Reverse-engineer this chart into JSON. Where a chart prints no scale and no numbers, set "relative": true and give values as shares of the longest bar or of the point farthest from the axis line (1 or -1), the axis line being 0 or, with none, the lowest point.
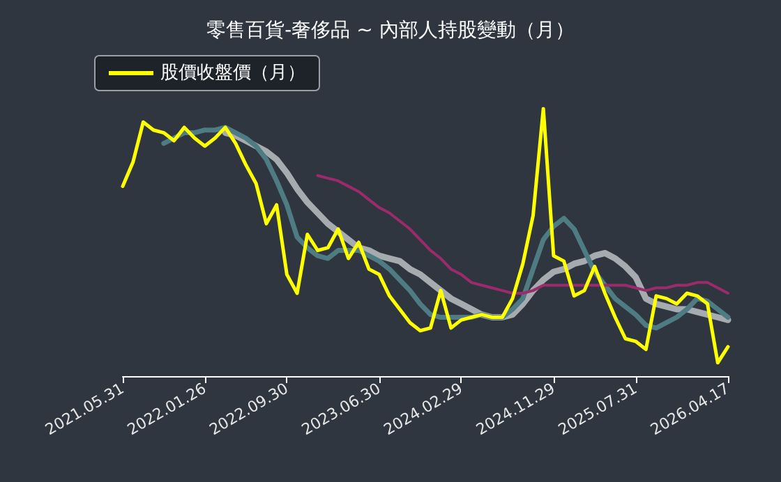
{
  "chart_data": {
    "type": "line",
    "title": "零售百貨-奢侈品 ~ 內部人持股變動（月）",
    "relative": true,
    "legend": "top left",
    "grid": false,
    "marker": "none",
    "line_style": "solid",
    "categories": [
      "2021.05.31",
      null,
      null,
      null,
      null,
      null,
      null,
      null,
      "2022.01.26",
      null,
      null,
      null,
      null,
      null,
      null,
      null,
      "2022.09.30",
      null,
      null,
      null,
      null,
      null,
      null,
      null,
      null,
      "2023.06.30",
      null,
      null,
      null,
      null,
      null,
      null,
      null,
      "2024.02.29",
      null,
      null,
      null,
      null,
      null,
      null,
      null,
      null,
      "2024.11.29",
      null,
      null,
      null,
      null,
      null,
      null,
      null,
      "2025.07.31",
      null,
      null,
      null,
      null,
      null,
      null,
      null,
      null,
      "2026.04.17"
    ],
    "series": [
      {
        "color": "#a6abb0",
        "values": [
          null,
          null,
          null,
          null,
          null,
          null,
          null,
          null,
          null,
          null,
          0.91,
          0.9,
          0.88,
          0.86,
          0.84,
          0.81,
          0.76,
          0.7,
          0.65,
          0.61,
          0.57,
          0.54,
          0.51,
          0.48,
          0.47,
          0.45,
          0.44,
          0.43,
          0.4,
          0.38,
          0.35,
          0.32,
          0.29,
          0.27,
          0.25,
          0.23,
          0.22,
          0.22,
          0.23,
          0.27,
          0.32,
          0.36,
          0.39,
          0.4,
          0.42,
          0.43,
          0.45,
          0.46,
          0.44,
          0.41,
          0.37,
          0.29,
          0.27,
          0.26,
          0.25,
          0.25,
          0.24,
          0.23,
          0.22,
          0.21
        ]
      },
      {
        "color": "#4e7c82",
        "values": [
          null,
          null,
          null,
          null,
          0.87,
          0.89,
          0.91,
          0.91,
          0.92,
          0.92,
          0.93,
          0.91,
          0.89,
          0.86,
          0.81,
          0.73,
          0.64,
          0.52,
          0.48,
          0.45,
          0.44,
          0.47,
          0.47,
          0.47,
          0.45,
          0.43,
          0.4,
          0.36,
          0.32,
          0.27,
          0.23,
          0.22,
          0.22,
          0.22,
          0.22,
          0.23,
          0.22,
          0.22,
          0.25,
          0.29,
          0.4,
          0.51,
          0.56,
          0.59,
          0.55,
          0.47,
          0.39,
          0.34,
          0.29,
          0.26,
          0.23,
          0.19,
          0.18,
          0.2,
          0.22,
          0.25,
          0.29,
          0.28,
          0.25,
          0.22
        ]
      },
      {
        "color": "#9b2b6b",
        "values": [
          null,
          null,
          null,
          null,
          null,
          null,
          null,
          null,
          null,
          null,
          null,
          null,
          null,
          null,
          null,
          null,
          null,
          null,
          null,
          0.75,
          0.74,
          0.73,
          0.71,
          0.69,
          0.66,
          0.63,
          0.61,
          0.58,
          0.55,
          0.51,
          0.47,
          0.44,
          0.4,
          0.38,
          0.35,
          0.34,
          0.33,
          0.32,
          0.31,
          0.31,
          0.32,
          0.34,
          0.34,
          0.34,
          0.34,
          0.34,
          0.34,
          0.34,
          0.34,
          0.34,
          0.33,
          0.32,
          0.33,
          0.33,
          0.34,
          0.34,
          0.35,
          0.35,
          0.33,
          0.31
        ]
      },
      {
        "name": "股價收盤價（月）",
        "color": "#ffff00",
        "values": [
          0.71,
          0.8,
          0.95,
          0.92,
          0.91,
          0.88,
          0.93,
          0.89,
          0.86,
          0.89,
          0.93,
          0.87,
          0.79,
          0.72,
          0.57,
          0.64,
          0.38,
          0.31,
          0.53,
          0.47,
          0.48,
          0.55,
          0.44,
          0.5,
          0.4,
          0.38,
          0.3,
          0.25,
          0.2,
          0.17,
          0.18,
          0.32,
          0.18,
          0.21,
          0.22,
          0.23,
          0.22,
          0.22,
          0.29,
          0.42,
          0.6,
          1,
          0.45,
          0.43,
          0.3,
          0.32,
          0.41,
          0.31,
          0.22,
          0.14,
          0.13,
          0.1,
          0.3,
          0.29,
          0.27,
          0.31,
          0.3,
          0.27,
          0.05,
          0.11
        ]
      }
    ]
  }
}
